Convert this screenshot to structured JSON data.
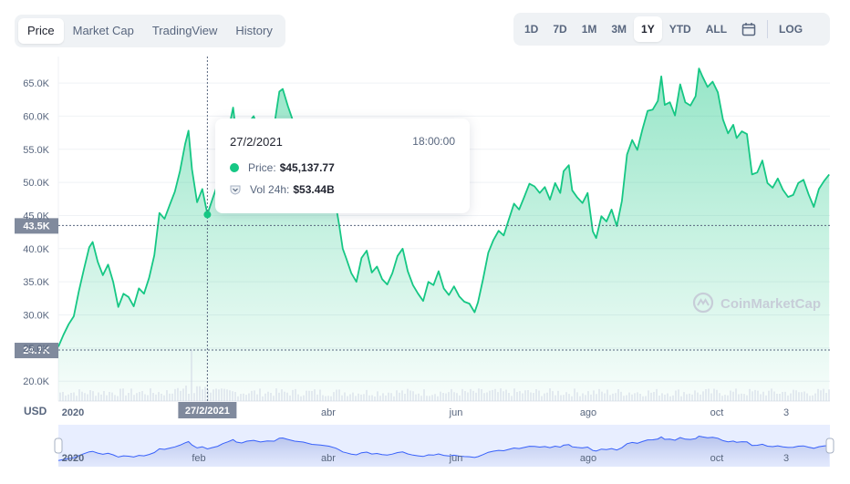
{
  "tabs": [
    {
      "label": "Price",
      "active": true
    },
    {
      "label": "Market Cap",
      "active": false
    },
    {
      "label": "TradingView",
      "active": false
    },
    {
      "label": "History",
      "active": false
    }
  ],
  "ranges": [
    {
      "label": "1D",
      "active": false
    },
    {
      "label": "7D",
      "active": false
    },
    {
      "label": "1M",
      "active": false
    },
    {
      "label": "3M",
      "active": false
    },
    {
      "label": "1Y",
      "active": true
    },
    {
      "label": "YTD",
      "active": false
    },
    {
      "label": "ALL",
      "active": false
    }
  ],
  "calendar_icon": "calendar-icon",
  "log_label": "LOG",
  "tooltip": {
    "date": "27/2/2021",
    "time": "18:00:00",
    "price_label": "Price:",
    "price_value": "$45,137.77",
    "vol_label": "Vol 24h:",
    "vol_value": "$53.44B"
  },
  "watermark": "CoinMarketCap",
  "chart_data": {
    "type": "area",
    "currency_label": "USD",
    "y_ticks": [
      "20.0K",
      "25.0K",
      "30.0K",
      "35.0K",
      "40.0K",
      "45.0K",
      "50.0K",
      "55.0K",
      "60.0K",
      "65.0K"
    ],
    "y_range": [
      17000,
      69000
    ],
    "x_ticks": [
      "2020",
      "abr",
      "jun",
      "ago",
      "oct",
      "3"
    ],
    "crosshair_x_label": "27/2/2021",
    "crosshair_y_label": "43.5K",
    "min_marker_label": "24.7K",
    "navigator_ticks": [
      "2020",
      "feb",
      "abr",
      "jun",
      "ago",
      "oct",
      "3"
    ],
    "line_color": "#16c784",
    "price_series": [
      [
        0,
        25200
      ],
      [
        0.006,
        27000
      ],
      [
        0.012,
        28600
      ],
      [
        0.018,
        29800
      ],
      [
        0.024,
        33600
      ],
      [
        0.03,
        37000
      ],
      [
        0.036,
        40200
      ],
      [
        0.04,
        41000
      ],
      [
        0.046,
        38000
      ],
      [
        0.052,
        36000
      ],
      [
        0.058,
        37600
      ],
      [
        0.064,
        35000
      ],
      [
        0.07,
        31200
      ],
      [
        0.076,
        33200
      ],
      [
        0.082,
        32700
      ],
      [
        0.088,
        31300
      ],
      [
        0.094,
        34000
      ],
      [
        0.1,
        33200
      ],
      [
        0.106,
        35600
      ],
      [
        0.112,
        39000
      ],
      [
        0.118,
        45400
      ],
      [
        0.124,
        44500
      ],
      [
        0.13,
        46600
      ],
      [
        0.136,
        48600
      ],
      [
        0.142,
        51700
      ],
      [
        0.148,
        55800
      ],
      [
        0.152,
        57800
      ],
      [
        0.156,
        52000
      ],
      [
        0.162,
        47000
      ],
      [
        0.168,
        49000
      ],
      [
        0.174,
        45200
      ],
      [
        0.18,
        47500
      ],
      [
        0.186,
        49800
      ],
      [
        0.192,
        54300
      ],
      [
        0.198,
        57500
      ],
      [
        0.204,
        61300
      ],
      [
        0.208,
        57000
      ],
      [
        0.214,
        55500
      ],
      [
        0.22,
        58600
      ],
      [
        0.228,
        60000
      ],
      [
        0.236,
        57200
      ],
      [
        0.244,
        59000
      ],
      [
        0.252,
        58500
      ],
      [
        0.258,
        63700
      ],
      [
        0.262,
        64100
      ],
      [
        0.268,
        61500
      ],
      [
        0.276,
        58500
      ],
      [
        0.286,
        57000
      ],
      [
        0.296,
        53000
      ],
      [
        0.306,
        52000
      ],
      [
        0.316,
        50000
      ],
      [
        0.324,
        46500
      ],
      [
        0.328,
        43500
      ],
      [
        0.332,
        40000
      ],
      [
        0.336,
        38600
      ],
      [
        0.342,
        36300
      ],
      [
        0.348,
        35000
      ],
      [
        0.354,
        38600
      ],
      [
        0.36,
        39700
      ],
      [
        0.366,
        36400
      ],
      [
        0.372,
        37300
      ],
      [
        0.378,
        35400
      ],
      [
        0.384,
        34600
      ],
      [
        0.39,
        36300
      ],
      [
        0.396,
        38900
      ],
      [
        0.402,
        40000
      ],
      [
        0.408,
        36600
      ],
      [
        0.414,
        34500
      ],
      [
        0.42,
        33200
      ],
      [
        0.426,
        32100
      ],
      [
        0.432,
        35000
      ],
      [
        0.438,
        34500
      ],
      [
        0.444,
        36600
      ],
      [
        0.45,
        34000
      ],
      [
        0.456,
        33000
      ],
      [
        0.462,
        34300
      ],
      [
        0.468,
        32800
      ],
      [
        0.474,
        32000
      ],
      [
        0.48,
        31700
      ],
      [
        0.486,
        30400
      ],
      [
        0.49,
        31900
      ],
      [
        0.496,
        35500
      ],
      [
        0.502,
        39400
      ],
      [
        0.508,
        41300
      ],
      [
        0.514,
        42700
      ],
      [
        0.52,
        42000
      ],
      [
        0.526,
        44400
      ],
      [
        0.532,
        46800
      ],
      [
        0.538,
        45900
      ],
      [
        0.544,
        47800
      ],
      [
        0.55,
        49800
      ],
      [
        0.556,
        49400
      ],
      [
        0.562,
        48400
      ],
      [
        0.568,
        49300
      ],
      [
        0.574,
        47400
      ],
      [
        0.58,
        49900
      ],
      [
        0.586,
        48400
      ],
      [
        0.59,
        51700
      ],
      [
        0.596,
        52600
      ],
      [
        0.6,
        48800
      ],
      [
        0.606,
        47700
      ],
      [
        0.612,
        46900
      ],
      [
        0.618,
        48400
      ],
      [
        0.624,
        42600
      ],
      [
        0.628,
        41600
      ],
      [
        0.634,
        44900
      ],
      [
        0.64,
        44100
      ],
      [
        0.646,
        45900
      ],
      [
        0.652,
        43400
      ],
      [
        0.658,
        47200
      ],
      [
        0.664,
        54200
      ],
      [
        0.67,
        56400
      ],
      [
        0.676,
        54900
      ],
      [
        0.682,
        58000
      ],
      [
        0.688,
        60800
      ],
      [
        0.694,
        61000
      ],
      [
        0.7,
        62300
      ],
      [
        0.704,
        66000
      ],
      [
        0.708,
        61700
      ],
      [
        0.714,
        62100
      ],
      [
        0.72,
        60100
      ],
      [
        0.726,
        64800
      ],
      [
        0.732,
        62100
      ],
      [
        0.738,
        61600
      ],
      [
        0.744,
        63000
      ],
      [
        0.748,
        67200
      ],
      [
        0.752,
        66000
      ],
      [
        0.758,
        64400
      ],
      [
        0.764,
        65200
      ],
      [
        0.77,
        63600
      ],
      [
        0.776,
        59500
      ],
      [
        0.782,
        57400
      ],
      [
        0.788,
        58700
      ],
      [
        0.792,
        56700
      ],
      [
        0.798,
        57700
      ],
      [
        0.804,
        57300
      ],
      [
        0.81,
        51200
      ],
      [
        0.816,
        51500
      ],
      [
        0.822,
        53300
      ],
      [
        0.828,
        49900
      ],
      [
        0.834,
        49200
      ],
      [
        0.84,
        50600
      ],
      [
        0.846,
        48900
      ],
      [
        0.852,
        47800
      ],
      [
        0.858,
        48100
      ],
      [
        0.864,
        49900
      ],
      [
        0.87,
        50400
      ],
      [
        0.876,
        48200
      ],
      [
        0.882,
        46300
      ],
      [
        0.888,
        49000
      ],
      [
        0.894,
        50200
      ],
      [
        0.9,
        51200
      ]
    ],
    "tooltip_point": [
      0.174,
      45137.77
    ]
  }
}
